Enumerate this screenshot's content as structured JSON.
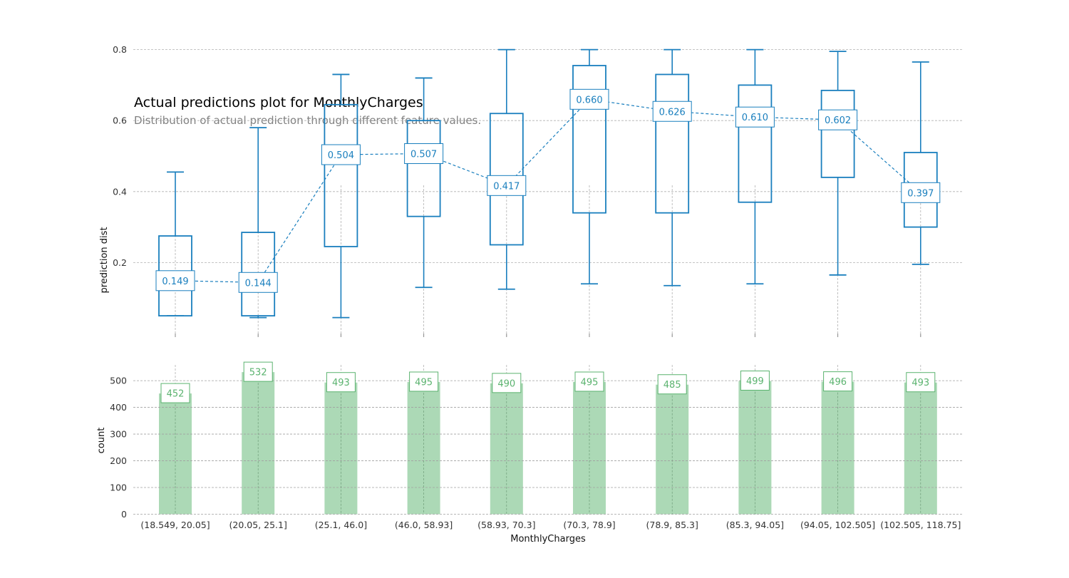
{
  "chart_data": [
    {
      "type": "box",
      "title": "Actual predictions plot for MonthlyCharges",
      "subtitle": "Distribution of actual prediction through different feature values.",
      "xlabel": "MonthlyCharges",
      "ylabel": "prediction dist",
      "ylim": [
        0.0,
        0.84
      ],
      "yticks": [
        "0.2",
        "0.4",
        "0.6",
        "0.8"
      ],
      "categories": [
        "(18.549, 20.05]",
        "(20.05, 25.1]",
        "(25.1, 46.0]",
        "(46.0, 58.93]",
        "(58.93, 70.3]",
        "(70.3, 78.9]",
        "(78.9, 85.3]",
        "(85.3, 94.05]",
        "(94.05, 102.505]",
        "(102.505, 118.75]"
      ],
      "boxes": [
        {
          "whislo": 0.05,
          "q1": 0.05,
          "q3": 0.275,
          "whishi": 0.455
        },
        {
          "whislo": 0.045,
          "q1": 0.05,
          "q3": 0.285,
          "whishi": 0.58
        },
        {
          "whislo": 0.045,
          "q1": 0.245,
          "q3": 0.645,
          "whishi": 0.73
        },
        {
          "whislo": 0.13,
          "q1": 0.33,
          "q3": 0.6,
          "whishi": 0.72
        },
        {
          "whislo": 0.125,
          "q1": 0.25,
          "q3": 0.62,
          "whishi": 0.8
        },
        {
          "whislo": 0.14,
          "q1": 0.34,
          "q3": 0.755,
          "whishi": 0.8
        },
        {
          "whislo": 0.135,
          "q1": 0.34,
          "q3": 0.73,
          "whishi": 0.8
        },
        {
          "whislo": 0.14,
          "q1": 0.37,
          "q3": 0.7,
          "whishi": 0.8
        },
        {
          "whislo": 0.165,
          "q1": 0.44,
          "q3": 0.685,
          "whishi": 0.795
        },
        {
          "whislo": 0.195,
          "q1": 0.3,
          "q3": 0.51,
          "whishi": 0.765
        }
      ],
      "medians": [
        0.149,
        0.144,
        0.504,
        0.507,
        0.417,
        0.66,
        0.626,
        0.61,
        0.602,
        0.397
      ],
      "median_labels": [
        "0.149",
        "0.144",
        "0.504",
        "0.507",
        "0.417",
        "0.660",
        "0.626",
        "0.610",
        "0.602",
        "0.397"
      ],
      "color": "#1A7FBE"
    },
    {
      "type": "bar",
      "xlabel": "MonthlyCharges",
      "ylabel": "count",
      "ylim": [
        0,
        560
      ],
      "yticks": [
        "0",
        "100",
        "200",
        "300",
        "400",
        "500"
      ],
      "categories": [
        "(18.549, 20.05]",
        "(20.05, 25.1]",
        "(25.1, 46.0]",
        "(46.0, 58.93]",
        "(58.93, 70.3]",
        "(70.3, 78.9]",
        "(78.9, 85.3]",
        "(85.3, 94.05]",
        "(94.05, 102.505]",
        "(102.505, 118.75]"
      ],
      "values": [
        452,
        532,
        493,
        495,
        490,
        495,
        485,
        499,
        496,
        493
      ],
      "value_labels": [
        "452",
        "532",
        "493",
        "495",
        "490",
        "495",
        "485",
        "499",
        "496",
        "493"
      ],
      "bar_color": "#ACD9B6",
      "label_color": "#5BB36F"
    }
  ]
}
